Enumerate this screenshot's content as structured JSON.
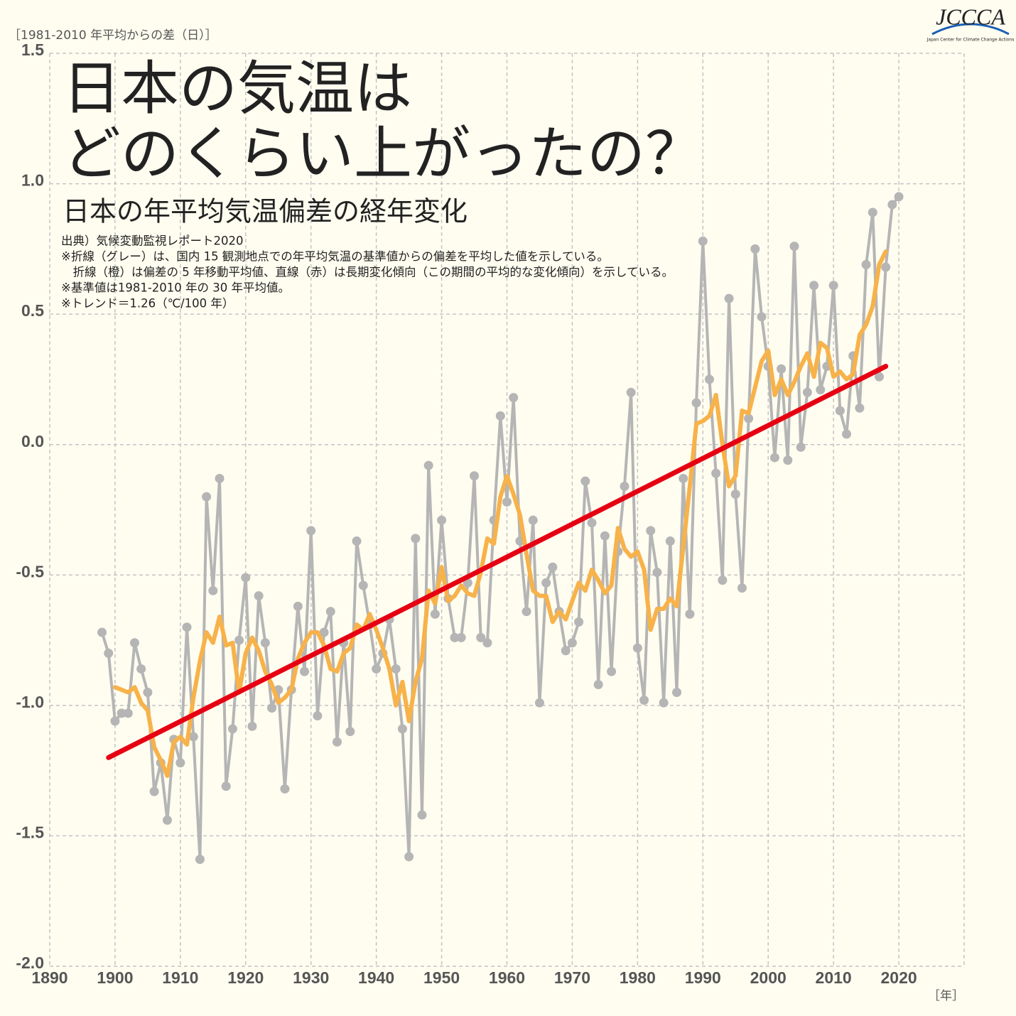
{
  "chart_data": {
    "type": "line",
    "title": [
      "日本の気温は",
      "どのくらい上がったの？"
    ],
    "subtitle": "日本の年平均気温偏差の経年変化",
    "notes": [
      "出典）気候変動監視レポート2020",
      "※折線（グレー）は、国内 15 観測地点での年平均気温の基準値からの偏差を平均した値を示している。",
      "　折線（橙）は偏差の 5 年移動平均値、直線（赤）は長期変化傾向（この期間の平均的な変化傾向）を示している。",
      "※基準値は1981-2010 年の 30 年平均値。",
      "※トレンド＝1.26（℃/100 年）"
    ],
    "y_label": "［1981-2010 年平均からの差（日）］",
    "x_label": "［年］",
    "logo": {
      "name": "JCCCA",
      "tagline": "Japan Center for Climate Change Actions"
    },
    "x": [
      1898,
      1899,
      1900,
      1901,
      1902,
      1903,
      1904,
      1905,
      1906,
      1907,
      1908,
      1909,
      1910,
      1911,
      1912,
      1913,
      1914,
      1915,
      1916,
      1917,
      1918,
      1919,
      1920,
      1921,
      1922,
      1923,
      1924,
      1925,
      1926,
      1927,
      1928,
      1929,
      1930,
      1931,
      1932,
      1933,
      1934,
      1935,
      1936,
      1937,
      1938,
      1939,
      1940,
      1941,
      1942,
      1943,
      1944,
      1945,
      1946,
      1947,
      1948,
      1949,
      1950,
      1951,
      1952,
      1953,
      1954,
      1955,
      1956,
      1957,
      1958,
      1959,
      1960,
      1961,
      1962,
      1963,
      1964,
      1965,
      1966,
      1967,
      1968,
      1969,
      1970,
      1971,
      1972,
      1973,
      1974,
      1975,
      1976,
      1977,
      1978,
      1979,
      1980,
      1981,
      1982,
      1983,
      1984,
      1985,
      1986,
      1987,
      1988,
      1989,
      1990,
      1991,
      1992,
      1993,
      1994,
      1995,
      1996,
      1997,
      1998,
      1999,
      2000,
      2001,
      2002,
      2003,
      2004,
      2005,
      2006,
      2007,
      2008,
      2009,
      2010,
      2011,
      2012,
      2013,
      2014,
      2015,
      2016,
      2017,
      2018,
      2019,
      2020
    ],
    "series": [
      {
        "color": "#b5b5b5",
        "markers": true,
        "values": [
          -0.72,
          -0.8,
          -1.06,
          -1.03,
          -1.03,
          -0.76,
          -0.86,
          -0.95,
          -1.33,
          -1.22,
          -1.44,
          -1.13,
          -1.22,
          -0.7,
          -1.12,
          -1.59,
          -0.2,
          -0.56,
          -0.13,
          -1.31,
          -1.09,
          -0.75,
          -0.51,
          -1.08,
          -0.58,
          -0.76,
          -1.01,
          -0.94,
          -1.32,
          -0.94,
          -0.62,
          -0.87,
          -0.33,
          -1.04,
          -0.72,
          -0.64,
          -1.14,
          -0.76,
          -1.1,
          -0.37,
          -0.54,
          -0.69,
          -0.86,
          -0.8,
          -0.67,
          -0.86,
          -1.09,
          -1.58,
          -0.36,
          -1.42,
          -0.08,
          -0.65,
          -0.29,
          -0.59,
          -0.74,
          -0.74,
          -0.53,
          -0.12,
          -0.74,
          -0.76,
          -0.29,
          0.11,
          -0.22,
          0.18,
          -0.37,
          -0.64,
          -0.29,
          -0.99,
          -0.53,
          -0.47,
          -0.64,
          -0.79,
          -0.76,
          -0.68,
          -0.14,
          -0.3,
          -0.92,
          -0.35,
          -0.87,
          -0.41,
          -0.16,
          0.2,
          -0.78,
          -0.98,
          -0.33,
          -0.49,
          -0.99,
          -0.37,
          -0.95,
          -0.13,
          -0.65,
          0.16,
          0.78,
          0.25,
          -0.11,
          -0.52,
          0.56,
          -0.19,
          -0.55,
          0.1,
          0.75,
          0.49,
          0.3,
          -0.05,
          0.29,
          -0.06,
          0.76,
          -0.01,
          0.2,
          0.61,
          0.21,
          0.3,
          0.61,
          0.13,
          0.04,
          0.34,
          0.14,
          0.69,
          0.89,
          0.26,
          0.68,
          0.92,
          0.95
        ]
      },
      {
        "color": "#f7b24a",
        "markers": false,
        "values": [
          null,
          null,
          -0.93,
          -0.94,
          -0.95,
          -0.93,
          -0.99,
          -1.02,
          -1.16,
          -1.21,
          -1.27,
          -1.14,
          -1.12,
          -1.15,
          -0.97,
          -0.83,
          -0.72,
          -0.76,
          -0.66,
          -0.77,
          -0.76,
          -0.95,
          -0.8,
          -0.74,
          -0.79,
          -0.87,
          -0.92,
          -0.99,
          -0.97,
          -0.94,
          -0.82,
          -0.76,
          -0.72,
          -0.72,
          -0.77,
          -0.86,
          -0.87,
          -0.8,
          -0.78,
          -0.69,
          -0.71,
          -0.65,
          -0.71,
          -0.78,
          -0.86,
          -1.0,
          -0.91,
          -1.06,
          -0.91,
          -0.82,
          -0.56,
          -0.61,
          -0.47,
          -0.6,
          -0.58,
          -0.54,
          -0.57,
          -0.58,
          -0.49,
          -0.36,
          -0.38,
          -0.2,
          -0.12,
          -0.19,
          -0.27,
          -0.42,
          -0.56,
          -0.58,
          -0.58,
          -0.68,
          -0.64,
          -0.67,
          -0.6,
          -0.53,
          -0.56,
          -0.48,
          -0.52,
          -0.57,
          -0.54,
          -0.32,
          -0.4,
          -0.43,
          -0.41,
          -0.48,
          -0.71,
          -0.63,
          -0.63,
          -0.59,
          -0.62,
          -0.39,
          -0.16,
          0.08,
          0.09,
          0.11,
          0.19,
          0.0,
          -0.16,
          -0.12,
          0.13,
          0.12,
          0.22,
          0.32,
          0.36,
          0.19,
          0.25,
          0.19,
          0.24,
          0.3,
          0.35,
          0.26,
          0.39,
          0.37,
          0.26,
          0.28,
          0.25,
          0.27,
          0.42,
          0.46,
          0.53,
          0.69,
          0.74,
          null,
          null
        ]
      }
    ],
    "trend": {
      "color": "#e60012",
      "x": [
        1899,
        2018
      ],
      "values": [
        -1.2,
        0.3
      ]
    },
    "xlim": [
      1890,
      2030
    ],
    "xticks": [
      1890,
      1900,
      1910,
      1920,
      1930,
      1940,
      1950,
      1960,
      1970,
      1980,
      1990,
      2000,
      2010,
      2020
    ],
    "ylim": [
      -2,
      1.5
    ],
    "yticks": [
      1.5,
      {
        "value": 1,
        "label": "1.0"
      },
      0.5,
      {
        "value": 0,
        "label": "0.0"
      },
      -0.5,
      {
        "value": -1,
        "label": "-1.0"
      },
      -1.5,
      {
        "value": -2,
        "label": "-2.0"
      }
    ],
    "grid": true
  }
}
